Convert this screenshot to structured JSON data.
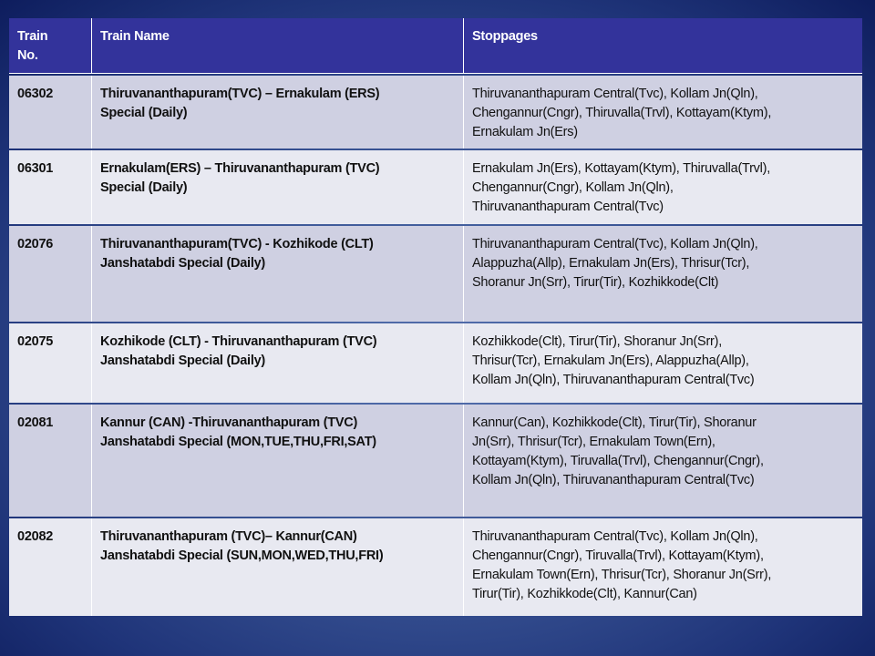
{
  "table": {
    "headers": [
      "Train No.",
      "Train Name",
      "Stoppages"
    ],
    "header_lines": [
      [
        "Train",
        "No."
      ],
      [
        "Train Name"
      ],
      [
        "Stoppages"
      ]
    ],
    "rows": [
      {
        "no": "06302",
        "name": [
          "Thiruvananthapuram(TVC) – Ernakulam (ERS)",
          "Special (Daily)"
        ],
        "stops": [
          "Thiruvananthapuram Central(Tvc), Kollam Jn(Qln),",
          "Chengannur(Cngr), Thiruvalla(Trvl), Kottayam(Ktym),",
          "Ernakulam Jn(Ers)"
        ]
      },
      {
        "no": "06301",
        "name": [
          "Ernakulam(ERS) – Thiruvananthapuram (TVC)",
          "Special (Daily)"
        ],
        "stops": [
          "Ernakulam Jn(Ers), Kottayam(Ktym), Thiruvalla(Trvl),",
          "Chengannur(Cngr), Kollam Jn(Qln),",
          "Thiruvananthapuram Central(Tvc)"
        ]
      },
      {
        "no": "02076",
        "name": [
          "Thiruvananthapuram(TVC) - Kozhikode (CLT)",
          "Janshatabdi Special (Daily)"
        ],
        "stops": [
          "Thiruvananthapuram Central(Tvc), Kollam Jn(Qln),",
          "Alappuzha(Allp), Ernakulam Jn(Ers), Thrisur(Tcr),",
          "Shoranur Jn(Srr), Tirur(Tir), Kozhikkode(Clt)"
        ]
      },
      {
        "no": "02075",
        "name": [
          "Kozhikode (CLT) - Thiruvananthapuram (TVC)",
          "Janshatabdi Special (Daily)"
        ],
        "stops": [
          "Kozhikkode(Clt), Tirur(Tir), Shoranur Jn(Srr),",
          "Thrisur(Tcr), Ernakulam Jn(Ers), Alappuzha(Allp),",
          "Kollam Jn(Qln), Thiruvananthapuram Central(Tvc)"
        ]
      },
      {
        "no": "02081",
        "name": [
          "Kannur (CAN) -Thiruvananthapuram (TVC)",
          "Janshatabdi Special (MON,TUE,THU,FRI,SAT)"
        ],
        "stops": [
          "Kannur(Can), Kozhikkode(Clt), Tirur(Tir), Shoranur",
          "Jn(Srr), Thrisur(Tcr), Ernakulam Town(Ern),",
          "Kottayam(Ktym), Tiruvalla(Trvl), Chengannur(Cngr),",
          "Kollam Jn(Qln), Thiruvananthapuram Central(Tvc)"
        ]
      },
      {
        "no": "02082",
        "name": [
          "Thiruvananthapuram (TVC)– Kannur(CAN)",
          "Janshatabdi Special (SUN,MON,WED,THU,FRI)"
        ],
        "stops": [
          "Thiruvananthapuram Central(Tvc), Kollam Jn(Qln),",
          "Chengannur(Cngr), Tiruvalla(Trvl), Kottayam(Ktym),",
          "Ernakulam Town(Ern), Thrisur(Tcr), Shoranur Jn(Srr),",
          "Tirur(Tir), Kozhikkode(Clt), Kannur(Can)"
        ]
      }
    ]
  },
  "colors": {
    "header": "#33339b",
    "row_odd": "#cfd0e2",
    "row_even": "#e8e9f1"
  }
}
